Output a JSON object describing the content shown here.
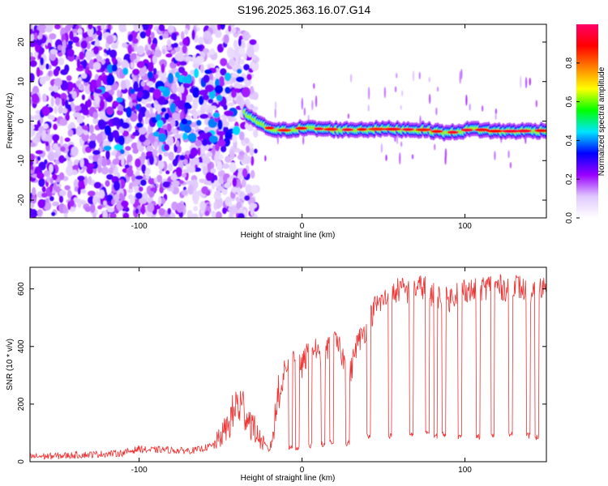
{
  "title": "S196.2025.363.16.07.G14",
  "chart_data": [
    {
      "type": "heatmap",
      "title": "S196.2025.363.16.07.G14",
      "xlabel": "Height of straight line (km)",
      "ylabel": "Frequency (Hz)",
      "xlim": [
        -167,
        150
      ],
      "ylim": [
        -24.5,
        24.5
      ],
      "xticks": [
        -100,
        0,
        100
      ],
      "yticks": [
        -20,
        -10,
        0,
        10,
        20
      ],
      "colorbar": {
        "label": "Normalized spectral amplitude",
        "range": [
          0,
          1
        ],
        "ticks": [
          "0.0",
          "0.2",
          "0.4",
          "0.6",
          "0.8"
        ],
        "colormap": [
          "#ffffff",
          "#e0c8ff",
          "#9900ff",
          "#0000ff",
          "#00e5ff",
          "#00ff00",
          "#ffff00",
          "#ff8000",
          "#ff0000",
          "#ff0066"
        ]
      },
      "ridge": {
        "description": "dominant narrow-band signal",
        "x": [
          -35,
          -25,
          -15,
          0,
          25,
          50,
          75,
          90,
          105,
          120,
          150
        ],
        "freq": [
          2,
          -1,
          -2.5,
          -1.8,
          -2.2,
          -2.0,
          -2.2,
          -3.0,
          -2.0,
          -2.6,
          -2.4
        ]
      }
    },
    {
      "type": "line",
      "xlabel": "Height of straight line (km)",
      "ylabel": "SNR (10 * v/v)",
      "xlim": [
        -167,
        150
      ],
      "ylim": [
        0,
        675
      ],
      "xticks": [
        -100,
        0,
        100
      ],
      "yticks": [
        0,
        200,
        400,
        600
      ],
      "series": [
        {
          "name": "SNR",
          "color": "#ee3333",
          "x": [
            -167,
            -150,
            -130,
            -110,
            -100,
            -95,
            -85,
            -75,
            -65,
            -55,
            -50,
            -45,
            -40,
            -35,
            -30,
            -25,
            -20,
            -17,
            -15,
            -12,
            -10,
            -7,
            -5,
            -2,
            0,
            3,
            6,
            9,
            12,
            15,
            18,
            21,
            24,
            27,
            30,
            33,
            36,
            40,
            45,
            50,
            55,
            60,
            65,
            70,
            75,
            80,
            85,
            90,
            95,
            100,
            105,
            110,
            115,
            120,
            125,
            130,
            135,
            140,
            145,
            150
          ],
          "values": [
            18,
            20,
            25,
            30,
            45,
            40,
            42,
            38,
            40,
            55,
            85,
            130,
            200,
            180,
            120,
            70,
            40,
            120,
            230,
            280,
            330,
            350,
            380,
            360,
            330,
            370,
            400,
            390,
            320,
            380,
            420,
            410,
            380,
            330,
            310,
            400,
            430,
            470,
            540,
            560,
            580,
            600,
            590,
            600,
            610,
            580,
            570,
            560,
            590,
            600,
            590,
            600,
            610,
            610,
            600,
            620,
            600,
            580,
            590,
            620
          ]
        }
      ],
      "dips": {
        "description": "periodic drops to low SNR",
        "x": [
          -7,
          -3,
          5,
          13,
          18,
          28,
          41,
          54,
          67,
          77,
          82,
          87,
          97,
          108,
          117,
          128,
          139,
          144
        ],
        "values": [
          40,
          35,
          45,
          50,
          60,
          55,
          80,
          80,
          85,
          90,
          80,
          85,
          75,
          75,
          80,
          85,
          80,
          75
        ]
      }
    }
  ]
}
